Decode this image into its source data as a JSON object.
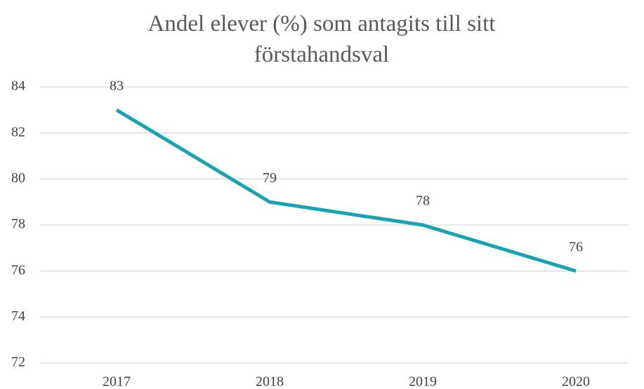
{
  "chart_data": {
    "type": "line",
    "title": "Andel elever (%) som antagits till sitt förstahandsval",
    "categories": [
      "2017",
      "2018",
      "2019",
      "2020"
    ],
    "series": [
      {
        "name": "Andel elever",
        "color": "#17a4b0",
        "values": [
          83,
          79,
          78,
          76
        ]
      }
    ],
    "ylim": [
      72,
      84
    ],
    "yticks": [
      72,
      74,
      76,
      78,
      80,
      82,
      84
    ],
    "grid": true
  }
}
